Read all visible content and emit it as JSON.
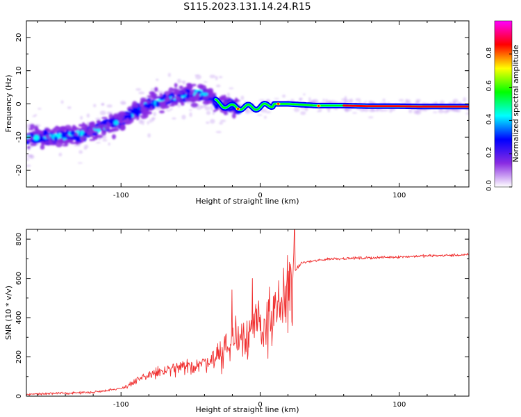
{
  "title": "S115.2023.131.14.24.R15",
  "chart_data": [
    {
      "type": "heatmap",
      "xlabel": "Height of straight line (km)",
      "ylabel": "Frequency (Hz)",
      "xlim": [
        -168,
        150
      ],
      "ylim": [
        -25,
        25
      ],
      "x_ticks": [
        -100,
        0,
        100
      ],
      "y_ticks": [
        -20,
        -10,
        0,
        10,
        20
      ],
      "colorbar": {
        "label": "Normalized spectral amplitude",
        "range": [
          0,
          1
        ],
        "ticks": [
          "0.0",
          "0.2",
          "0.4",
          "0.6",
          "0.8"
        ],
        "colors": [
          "#ffffff",
          "#8a2be2",
          "#0000ff",
          "#00ffff",
          "#00ff00",
          "#ffff00",
          "#ff0000",
          "#ff00ff"
        ]
      },
      "ridge": {
        "x": [
          -168,
          -150,
          -130,
          -120,
          -100,
          -80,
          -60,
          -50,
          -40,
          -30,
          -20,
          -10,
          0,
          10,
          20,
          40,
          60,
          80,
          100,
          120,
          150
        ],
        "frequency": [
          -10,
          -10,
          -9.5,
          -8,
          -5,
          0,
          2,
          3,
          3,
          0,
          -1,
          -1,
          -1,
          0,
          0,
          -0.5,
          -0.5,
          -0.7,
          -0.7,
          -0.8,
          -0.8
        ]
      }
    },
    {
      "type": "line",
      "xlabel": "Height of straight line (km)",
      "ylabel": "SNR (10 * v/v)",
      "xlim": [
        -168,
        150
      ],
      "ylim": [
        0,
        850
      ],
      "x_ticks": [
        -100,
        0,
        100
      ],
      "y_ticks": [
        0,
        200,
        400,
        600,
        800
      ],
      "color": "#f03030",
      "trend": {
        "x": [
          -168,
          -140,
          -120,
          -100,
          -90,
          -80,
          -70,
          -60,
          -50,
          -40,
          -30,
          -20,
          -15,
          -10,
          0,
          10,
          15,
          20,
          25,
          30,
          50,
          80,
          100,
          120,
          150
        ],
        "y": [
          10,
          15,
          20,
          40,
          70,
          110,
          125,
          140,
          150,
          170,
          210,
          260,
          300,
          330,
          360,
          390,
          440,
          540,
          640,
          680,
          700,
          705,
          710,
          715,
          720
        ]
      }
    }
  ]
}
